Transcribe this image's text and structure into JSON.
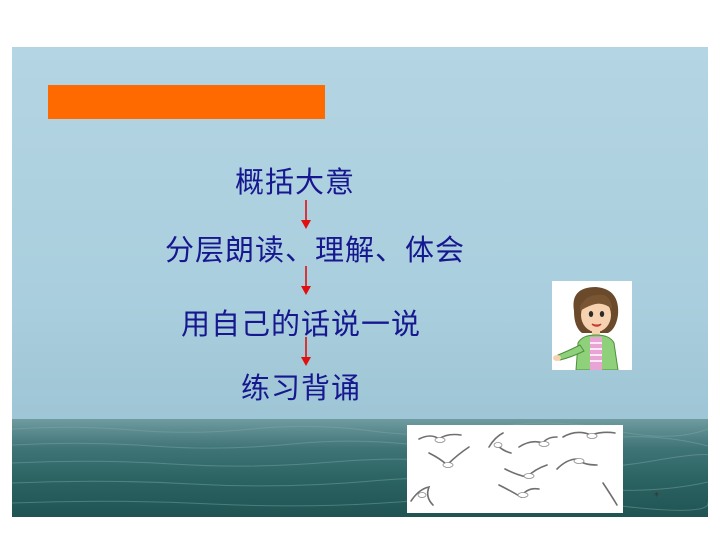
{
  "slide": {
    "steps": [
      "概括大意",
      "分层朗读、理解、体会",
      "用自己的话说一说",
      "练习背诵"
    ],
    "footer_mark": "*"
  },
  "colors": {
    "accent_bar": "#ff6a00",
    "step_text": "#17178f",
    "arrow": "#e01010",
    "sky": "#b4d5e3",
    "sea": "#2c6463"
  },
  "images": {
    "girl": "cartoon-girl-pointing",
    "birds": "flying-seagulls"
  }
}
